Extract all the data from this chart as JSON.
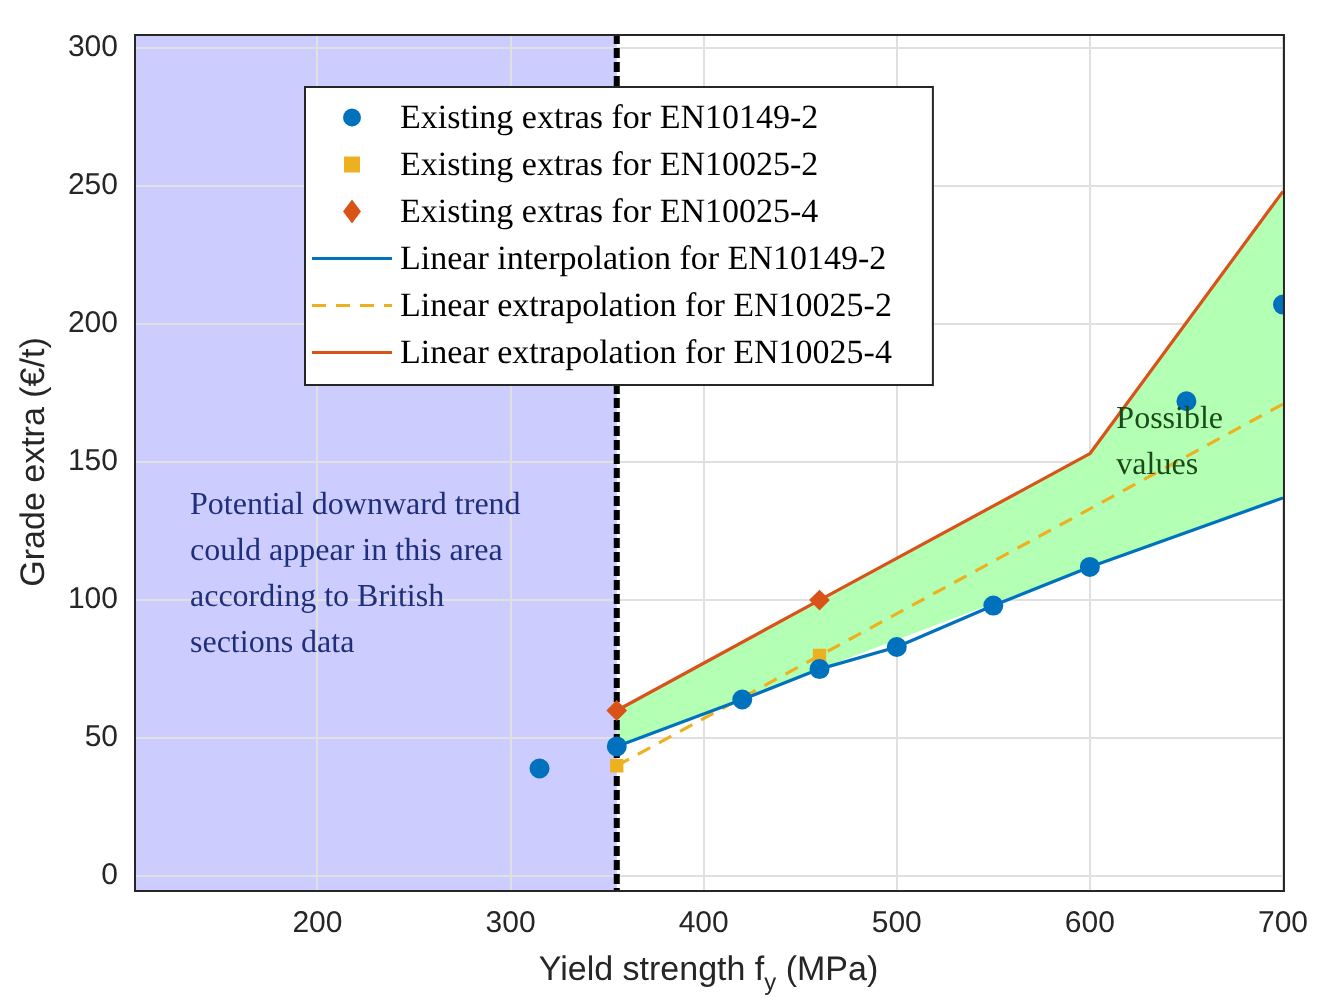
{
  "chart_data": {
    "type": "scatter",
    "xlabel": "Yield strength f$_{y}$ (MPa)",
    "ylabel": "Grade extra (€/t)",
    "xlim": [
      105,
      700
    ],
    "xticks": [
      200,
      300,
      400,
      500,
      600,
      700
    ],
    "ylim": [
      -5,
      305
    ],
    "yticks": [
      0,
      50,
      100,
      150,
      200,
      250,
      300
    ],
    "grid": true,
    "legend": "top",
    "series": [
      {
        "name": "Existing extras for EN10149-2",
        "type": "scatter",
        "marker": "circle",
        "color": "#0072bd",
        "x": [
          315,
          355,
          420,
          460,
          500,
          550,
          600,
          650,
          700
        ],
        "values": [
          39,
          47,
          64,
          75,
          83,
          98,
          112,
          172,
          207
        ]
      },
      {
        "name": "Existing extras for EN10025-2",
        "type": "scatter",
        "marker": "square",
        "color": "#edb120",
        "x": [
          355,
          460
        ],
        "values": [
          40,
          80
        ]
      },
      {
        "name": "Existing extras for EN10025-4",
        "type": "scatter",
        "marker": "diamond",
        "color": "#d95319",
        "x": [
          355,
          460
        ],
        "values": [
          60,
          100
        ]
      },
      {
        "name": "Linear interpolation for EN10149-2",
        "type": "line",
        "line_style": "solid",
        "color": "#0072bd",
        "x": [
          355,
          420,
          460,
          500,
          550,
          600,
          700
        ],
        "values": [
          47,
          64,
          75,
          83,
          98,
          112,
          137
        ]
      },
      {
        "name": "Linear extrapolation for EN10025-2",
        "type": "line",
        "line_style": "dashed",
        "color": "#edb120",
        "x": [
          355,
          700
        ],
        "values": [
          40,
          171
        ]
      },
      {
        "name": "Linear extrapolation for EN10025-4",
        "type": "line",
        "line_style": "solid",
        "color": "#d95319",
        "x": [
          355,
          460,
          600,
          700
        ],
        "values": [
          60,
          100,
          153,
          248
        ],
        "lower": [
          47,
          75,
          112,
          137
        ],
        "upper": [
          60,
          100,
          153,
          248
        ]
      }
    ],
    "bands": [
      {
        "axis": "x",
        "from": 105,
        "to": 355,
        "color": "#ccccff"
      }
    ],
    "ref_lines": [
      {
        "axis": "x",
        "value": 355,
        "color": "#000000",
        "line_style": "dashed"
      }
    ],
    "annotations": [
      "Potential downward trend could appear in this area according to British sections data",
      "Possible values"
    ]
  }
}
